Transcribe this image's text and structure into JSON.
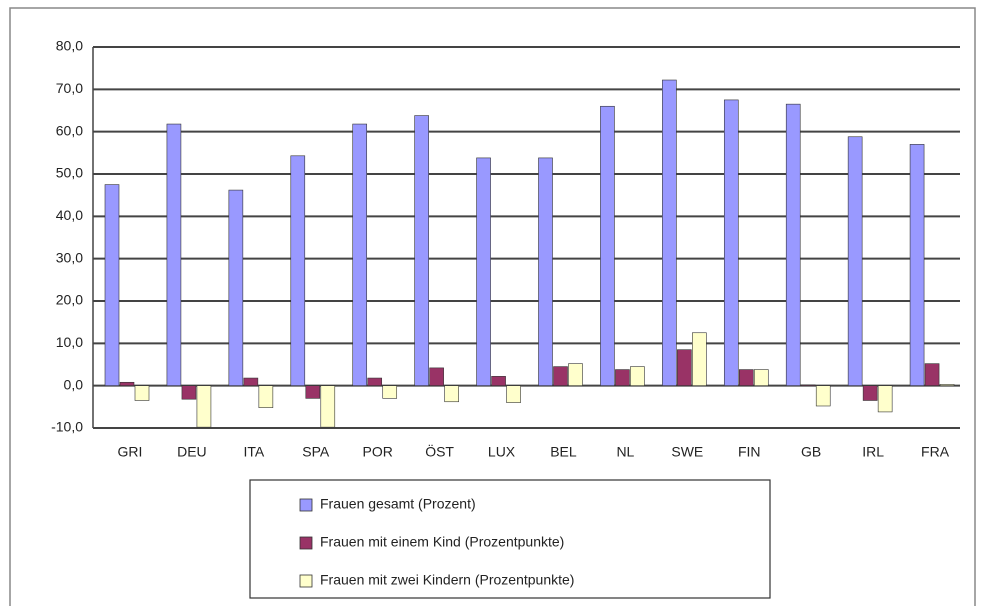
{
  "chart_data": {
    "type": "bar",
    "categories": [
      "GRI",
      "DEU",
      "ITA",
      "SPA",
      "POR",
      "ÖST",
      "LUX",
      "BEL",
      "NL",
      "SWE",
      "FIN",
      "GB",
      "IRL",
      "FRA"
    ],
    "series": [
      {
        "name": "Frauen gesamt (Prozent)",
        "color": "#9999ff",
        "values": [
          47.5,
          61.8,
          46.2,
          54.3,
          61.8,
          63.8,
          53.8,
          53.8,
          66.0,
          72.2,
          67.5,
          66.5,
          58.8,
          57.0
        ]
      },
      {
        "name": "Frauen mit einem Kind (Prozentpunkte)",
        "color": "#993366",
        "values": [
          0.8,
          -3.2,
          1.8,
          -3.0,
          1.8,
          4.2,
          2.2,
          4.5,
          3.8,
          8.5,
          3.8,
          0.2,
          -3.5,
          5.2
        ]
      },
      {
        "name": "Frauen mit zwei Kindern (Prozentpunkte)",
        "color": "#ffffcc",
        "values": [
          -3.5,
          -9.8,
          -5.2,
          -9.8,
          -3.0,
          -3.8,
          -4.0,
          5.2,
          4.5,
          12.5,
          3.8,
          -4.8,
          -6.2,
          0.3
        ]
      }
    ],
    "ylim": [
      -10,
      80
    ],
    "yticks": [
      {
        "value": -10,
        "label": "-10,0"
      },
      {
        "value": 0,
        "label": "0,0"
      },
      {
        "value": 10,
        "label": "10,0"
      },
      {
        "value": 20,
        "label": "20,0"
      },
      {
        "value": 30,
        "label": "30,0"
      },
      {
        "value": 40,
        "label": "40,0"
      },
      {
        "value": 50,
        "label": "50,0"
      },
      {
        "value": 60,
        "label": "60,0"
      },
      {
        "value": 70,
        "label": "70,0"
      },
      {
        "value": 80,
        "label": "80,0"
      }
    ],
    "grid": true
  }
}
